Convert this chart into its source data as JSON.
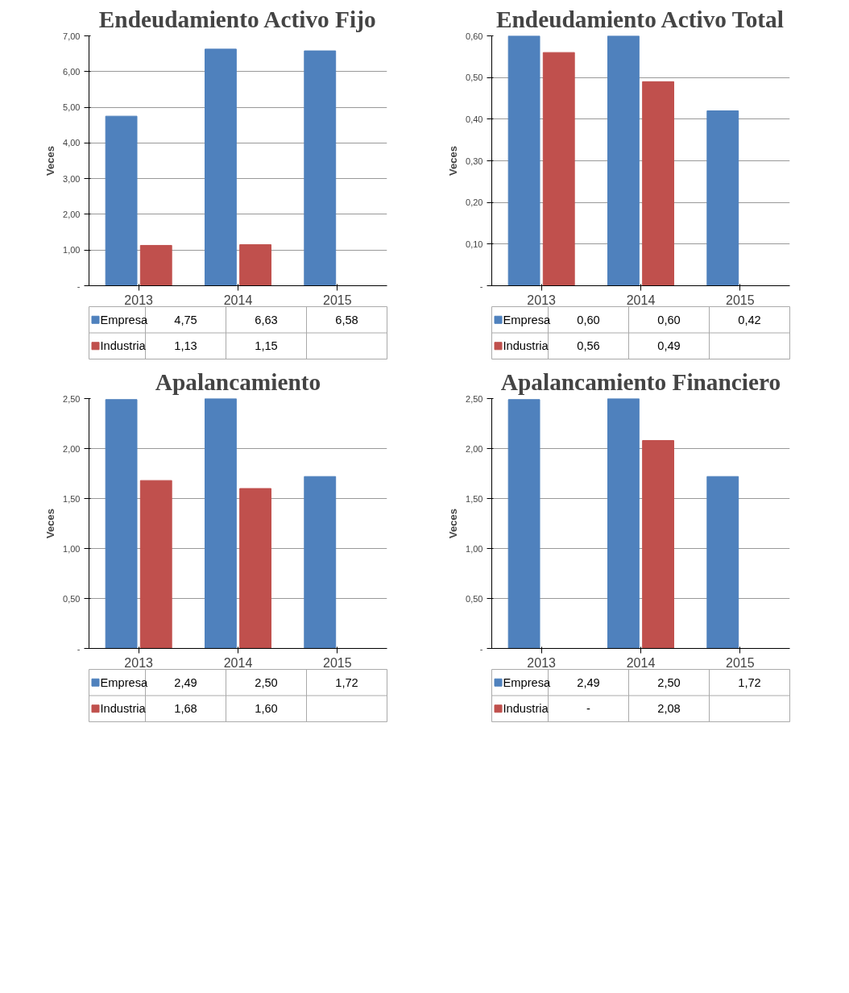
{
  "chart_data": [
    {
      "type": "bar",
      "title": "Endeudamiento Activo Fijo",
      "ylabel": "Veces",
      "categories": [
        "2013",
        "2014",
        "2015"
      ],
      "ylim": [
        0,
        7
      ],
      "yticks": [
        {
          "value": 0,
          "label": "-"
        },
        {
          "value": 1,
          "label": "1,00"
        },
        {
          "value": 2,
          "label": "2,00"
        },
        {
          "value": 3,
          "label": "3,00"
        },
        {
          "value": 4,
          "label": "4,00"
        },
        {
          "value": 5,
          "label": "5,00"
        },
        {
          "value": 6,
          "label": "6,00"
        },
        {
          "value": 7,
          "label": "7,00"
        }
      ],
      "grid": "y",
      "legend": "bottom",
      "series": [
        {
          "name": "Empresa",
          "color": "#4f81bd",
          "values": [
            4.75,
            6.63,
            6.58
          ],
          "value_labels": [
            "4,75",
            "6,63",
            "6,58"
          ]
        },
        {
          "name": "Industria",
          "color": "#c0504d",
          "values": [
            1.13,
            1.15,
            null
          ],
          "value_labels": [
            "1,13",
            "1,15",
            null
          ]
        }
      ]
    },
    {
      "type": "bar",
      "title": "Endeudamiento Activo Total",
      "ylabel": "Veces",
      "categories": [
        "2013",
        "2014",
        "2015"
      ],
      "ylim": [
        0,
        0.6
      ],
      "yticks": [
        {
          "value": 0,
          "label": "-"
        },
        {
          "value": 0.1,
          "label": "0,10"
        },
        {
          "value": 0.2,
          "label": "0,20"
        },
        {
          "value": 0.3,
          "label": "0,30"
        },
        {
          "value": 0.4,
          "label": "0,40"
        },
        {
          "value": 0.5,
          "label": "0,50"
        },
        {
          "value": 0.6,
          "label": "0,60"
        }
      ],
      "grid": "y",
      "legend": "bottom",
      "series": [
        {
          "name": "Empresa",
          "color": "#4f81bd",
          "values": [
            0.6,
            0.6,
            0.42
          ],
          "value_labels": [
            "0,60",
            "0,60",
            "0,42"
          ]
        },
        {
          "name": "Industria",
          "color": "#c0504d",
          "values": [
            0.56,
            0.49,
            null
          ],
          "value_labels": [
            "0,56",
            "0,49",
            null
          ]
        }
      ]
    },
    {
      "type": "bar",
      "title": "Apalancamiento",
      "ylabel": "Veces",
      "categories": [
        "2013",
        "2014",
        "2015"
      ],
      "ylim": [
        0,
        2.5
      ],
      "yticks": [
        {
          "value": 0,
          "label": "-"
        },
        {
          "value": 0.5,
          "label": "0,50"
        },
        {
          "value": 1,
          "label": "1,00"
        },
        {
          "value": 1.5,
          "label": "1,50"
        },
        {
          "value": 2,
          "label": "2,00"
        },
        {
          "value": 2.5,
          "label": "2,50"
        }
      ],
      "grid": "y",
      "legend": "bottom",
      "series": [
        {
          "name": "Empresa",
          "color": "#4f81bd",
          "values": [
            2.49,
            2.5,
            1.72
          ],
          "value_labels": [
            "2,49",
            "2,50",
            "1,72"
          ]
        },
        {
          "name": "Industria",
          "color": "#c0504d",
          "values": [
            1.68,
            1.6,
            null
          ],
          "value_labels": [
            "1,68",
            "1,60",
            null
          ]
        }
      ]
    },
    {
      "type": "bar",
      "title": "Apalancamiento Financiero",
      "ylabel": "Veces",
      "categories": [
        "2013",
        "2014",
        "2015"
      ],
      "ylim": [
        0,
        2.5
      ],
      "yticks": [
        {
          "value": 0,
          "label": "-"
        },
        {
          "value": 0.5,
          "label": "0,50"
        },
        {
          "value": 1,
          "label": "1,00"
        },
        {
          "value": 1.5,
          "label": "1,50"
        },
        {
          "value": 2,
          "label": "2,00"
        },
        {
          "value": 2.5,
          "label": "2,50"
        }
      ],
      "grid": "y",
      "legend": "bottom",
      "series": [
        {
          "name": "Empresa",
          "color": "#4f81bd",
          "values": [
            2.49,
            2.5,
            1.72
          ],
          "value_labels": [
            "2,49",
            "2,50",
            "1,72"
          ]
        },
        {
          "name": "Industria",
          "color": "#c0504d",
          "values": [
            0,
            2.08,
            null
          ],
          "value_labels": [
            "-",
            "2,08",
            null
          ]
        }
      ]
    }
  ]
}
